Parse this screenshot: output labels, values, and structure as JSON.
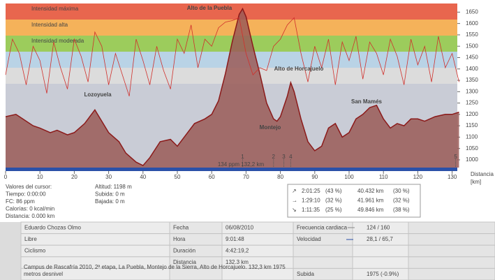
{
  "chart_data": {
    "type": "area",
    "zones": [
      {
        "label": "Intensidad máxima",
        "color": "#e8664e"
      },
      {
        "label": "Intensidad alta",
        "color": "#f5b25a"
      },
      {
        "label": "Intensidad moderada",
        "color": "#9ccc5c"
      },
      {
        "color": "#b9d3e6"
      },
      {
        "color": "#dcdcdc"
      }
    ],
    "series": [
      {
        "color": "#8b1a1a",
        "fill": "#9a5a57",
        "x": [
          0,
          3,
          5,
          8,
          10,
          13,
          15,
          18,
          20,
          23,
          26,
          28,
          30,
          33,
          35,
          38,
          40,
          42,
          45,
          48,
          50,
          52,
          55,
          58,
          60,
          62,
          64,
          66,
          68,
          69,
          70,
          72,
          74,
          76,
          78,
          79,
          80,
          82,
          83,
          84,
          86,
          88,
          90,
          92,
          94,
          96,
          98,
          100,
          102,
          104,
          106,
          108,
          110,
          112,
          114,
          116,
          118,
          120,
          122,
          125,
          128,
          130,
          132
        ],
        "values": [
          1190,
          1200,
          1180,
          1150,
          1140,
          1120,
          1130,
          1110,
          1120,
          1160,
          1220,
          1170,
          1120,
          1080,
          1030,
          990,
          975,
          1010,
          1080,
          1090,
          1060,
          1100,
          1160,
          1180,
          1200,
          1260,
          1380,
          1520,
          1640,
          1665,
          1630,
          1500,
          1380,
          1250,
          1180,
          1170,
          1190,
          1280,
          1340,
          1300,
          1180,
          1080,
          1040,
          1060,
          1140,
          1160,
          1100,
          1120,
          1180,
          1200,
          1230,
          1240,
          1180,
          1140,
          1160,
          1150,
          1180,
          1180,
          1170,
          1190,
          1200,
          1200,
          1210
        ]
      },
      {
        "color": "#d0302c",
        "axis": "hr",
        "x": [
          0,
          2,
          4,
          6,
          8,
          10,
          12,
          14,
          16,
          18,
          20,
          22,
          24,
          26,
          28,
          30,
          32,
          34,
          36,
          38,
          40,
          42,
          44,
          46,
          48,
          50,
          52,
          54,
          56,
          58,
          60,
          62,
          64,
          66,
          68,
          70,
          72,
          74,
          76,
          78,
          80,
          82,
          84,
          86,
          88,
          90,
          92,
          94,
          96,
          98,
          100,
          102,
          104,
          106,
          108,
          110,
          112,
          114,
          116,
          118,
          120,
          122,
          124,
          126,
          128,
          130,
          132
        ],
        "values": [
          125,
          150,
          140,
          118,
          145,
          135,
          112,
          148,
          130,
          115,
          150,
          138,
          120,
          155,
          145,
          118,
          140,
          125,
          110,
          150,
          135,
          118,
          145,
          128,
          115,
          150,
          140,
          160,
          130,
          150,
          145,
          158,
          162,
          163,
          165,
          140,
          125,
          130,
          128,
          145,
          150,
          160,
          165,
          140,
          120,
          145,
          130,
          150,
          118,
          148,
          135,
          152,
          122,
          148,
          140,
          125,
          150,
          138,
          118,
          150,
          132,
          145,
          120,
          152,
          130,
          140,
          120
        ]
      }
    ],
    "xlim": [
      0,
      131.5
    ],
    "xticks": [
      0,
      10,
      20,
      30,
      40,
      50,
      60,
      70,
      80,
      90,
      100,
      110,
      120,
      130
    ],
    "ylim": [
      966,
      1688
    ],
    "yticks": [
      1000,
      1050,
      1100,
      1150,
      1200,
      1250,
      1300,
      1350,
      1400,
      1450,
      1500,
      1550,
      1600,
      1650
    ],
    "hrlim": [
      60,
      175
    ],
    "x_label": [
      "Distancia",
      "[km]"
    ],
    "annotations": [
      "Alto de la Puebla",
      "Alto de Horcajuelo",
      "Lozoyuela",
      "Montejo",
      "San Mamés"
    ],
    "markers": [
      {
        "label": "1",
        "x": 69
      },
      {
        "label": "2",
        "x": 78
      },
      {
        "label": "3",
        "x": 81
      },
      {
        "label": "4",
        "x": 83
      },
      {
        "label": "5",
        "x": 131
      }
    ],
    "cursor_note": "134 ppm 132,2 km"
  },
  "cursor_left": [
    {
      "text": "Valores del cursor:",
      "color": "#444"
    },
    {
      "text": "Tiempo: 0:00:00",
      "color": "#444"
    },
    {
      "text": "FC: 86 ppm",
      "color": "#d02020"
    },
    {
      "text": "Calorías: 0 kcal/min",
      "color": "#d02020"
    },
    {
      "text": "Distancia: 0.000 km",
      "color": "#444"
    }
  ],
  "cursor_mid": [
    {
      "text": "Altitud: 1198 m",
      "color": "#d02020"
    },
    {
      "text": "Subida: 0 m",
      "color": "#444"
    },
    {
      "text": "Bajada: 0 m",
      "color": "#444"
    }
  ],
  "summary": [
    {
      "arrow": "↗",
      "time": "2:01:25",
      "pct": "(43 %)",
      "km": "40.432 km",
      "kmpct": "(30 %)"
    },
    {
      "arrow": "→",
      "time": "1:29:10",
      "pct": "(32 %)",
      "km": "41.961 km",
      "kmpct": "(32 %)"
    },
    {
      "arrow": "↘",
      "time": "1:11:35",
      "pct": "(25 %)",
      "km": "49.846 km",
      "kmpct": "(38 %)"
    }
  ],
  "table": {
    "rows": [
      [
        "Eduardo Chozas Olmo",
        "Fecha",
        "06/08/2010",
        "Frecuencia cardiaca",
        "124 / 160"
      ],
      [
        "Libre",
        "Hora",
        "9:01:48",
        "Velocidad",
        "28,1 / 65,7"
      ],
      [
        "Ciclismo",
        "Duración",
        "4:42:19,2",
        null,
        null
      ],
      [
        null,
        "Distancia",
        "132.3 km",
        null,
        null
      ],
      [
        "Campus de Rascafría 2010, 2ª etapa, La Puebla, Montejo de la Sierra, Alto de Horcajuelo. 132,3 km 1975 metros desnivel",
        null,
        null,
        "Subida",
        "1975 (-0.9%)"
      ]
    ]
  }
}
